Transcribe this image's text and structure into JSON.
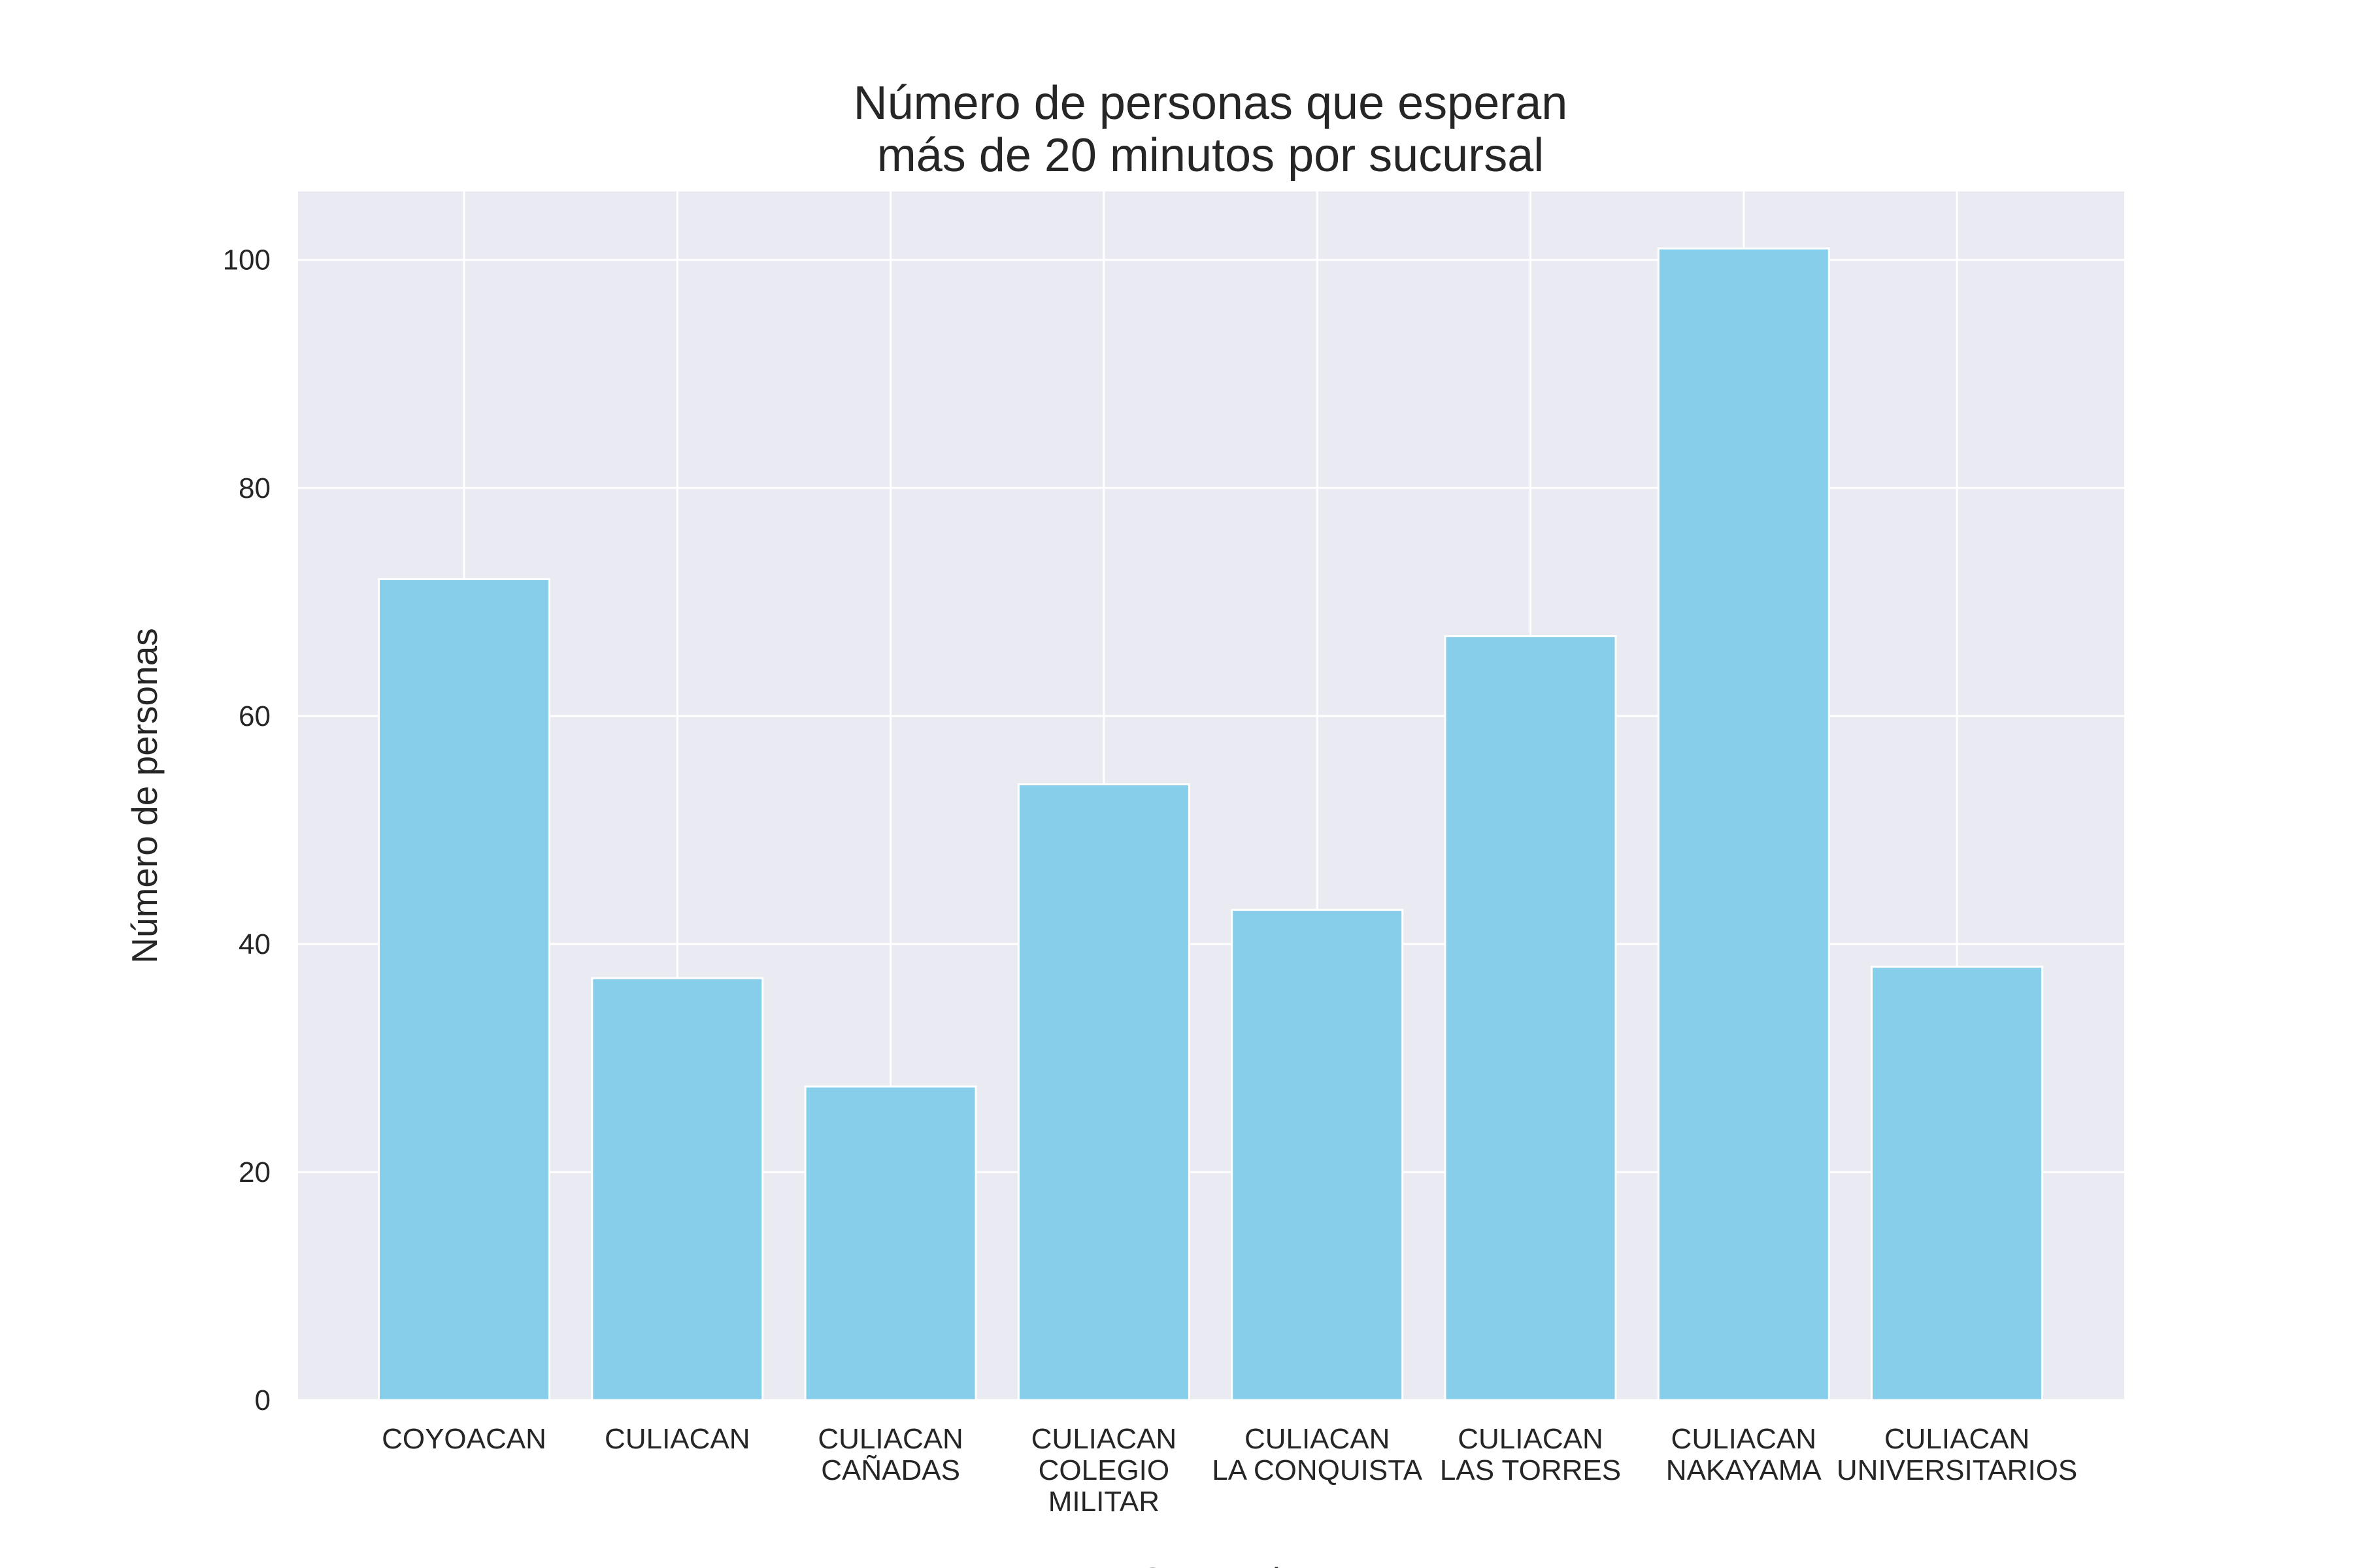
{
  "chart_data": {
    "type": "bar",
    "title_lines": [
      "Número de personas que esperan",
      "más de 20 minutos por sucursal"
    ],
    "xlabel": "Sucursal",
    "ylabel": "Número de personas",
    "categories": [
      [
        "COYOACAN"
      ],
      [
        "CULIACAN"
      ],
      [
        "CULIACAN",
        "CAÑADAS"
      ],
      [
        "CULIACAN",
        "COLEGIO",
        "MILITAR"
      ],
      [
        "CULIACAN",
        "LA CONQUISTA"
      ],
      [
        "CULIACAN",
        "LAS TORRES"
      ],
      [
        "CULIACAN",
        "NAKAYAMA"
      ],
      [
        "CULIACAN",
        "UNIVERSITARIOS"
      ]
    ],
    "values": [
      72,
      37,
      27.5,
      54,
      43,
      67,
      101,
      38
    ],
    "ylim": [
      0,
      106
    ],
    "yticks": [
      0,
      20,
      40,
      60,
      80,
      100
    ],
    "grid": true,
    "colors": {
      "bar": "#87CEEB",
      "plot_background": "#EAEAF2",
      "grid": "#FFFFFF",
      "text": "#262626"
    }
  }
}
